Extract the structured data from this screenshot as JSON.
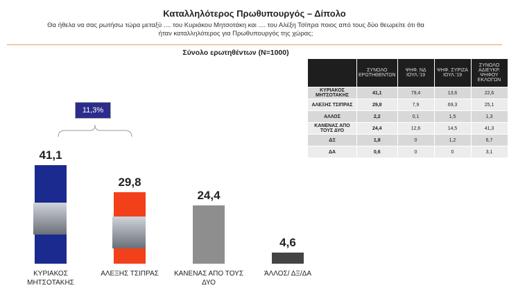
{
  "chart_data": {
    "type": "bar",
    "title": "Καταλληλότερος Πρωθυπουργός – Δίπολο",
    "subtitle": "Θα ήθελα να σας ρωτήσω τώρα μεταξύ .... του Κυριάκου Μητσοτάκη και .... του  Αλέξη Τσίπρα ποιος από τους δύο θεωρείτε ότι θα ήταν καταλληλότερος για Πρωθυπουργός της χώρας;",
    "base": "Σύνολο ερωτηθέντων (N=1000)",
    "categories": [
      "ΚΥΡΙΑΚΟΣ ΜΗΤΣΟΤΑΚΗΣ",
      "ΑΛΕΞΗΣ ΤΣΙΠΡΑΣ",
      "ΚΑΝΕΝΑΣ ΑΠΟ ΤΟΥΣ ΔΥΟ",
      "ΆΛΛΟΣ/ ΔΞ/ΔΑ"
    ],
    "values": [
      41.1,
      29.8,
      24.4,
      4.6
    ],
    "value_labels": [
      "41,1",
      "29,8",
      "24,4",
      "4,6"
    ],
    "colors": [
      "#1b2a8e",
      "#f2401a",
      "#8e8e8e",
      "#444444"
    ],
    "annotation": "11,3%"
  },
  "table": {
    "header": [
      "ΣΥΝΟΛΟ ΕΡΩΤΗΘΕΝΤΩΝ",
      "ΨΗΦ. ΝΔ ΙΟΥΛ.'19",
      "ΨΗΦ. ΣΥΡΙΖΑ ΙΟΥΛ.'19",
      "ΣΥΝΟΛΟ ΑΔΙΕΥΚΡ. ΨΗΦΟΥ ΕΚΛΟΓΩΝ"
    ],
    "rows": [
      [
        "ΚΥΡΙΑΚΟΣ ΜΗΤΣΟΤΑΚΗΣ",
        "41,1",
        "79,4",
        "13,6",
        "22,6"
      ],
      [
        "ΑΛΕΞΗΣ ΤΣΙΠΡΑΣ",
        "29,8",
        "7,9",
        "69,3",
        "25,1"
      ],
      [
        "ΑΛΛΟΣ",
        "2,2",
        "0,1",
        "1,5",
        "1,3"
      ],
      [
        "ΚΑΝΕΝΑΣ ΑΠΟ ΤΟΥΣ ΔΥΟ",
        "24,4",
        "12,6",
        "14,5",
        "41,3"
      ],
      [
        "ΔΞ",
        "1,8",
        "0",
        "1,2",
        "6,7"
      ],
      [
        "ΔΑ",
        "0,6",
        "0",
        "0",
        "3,1"
      ]
    ]
  }
}
